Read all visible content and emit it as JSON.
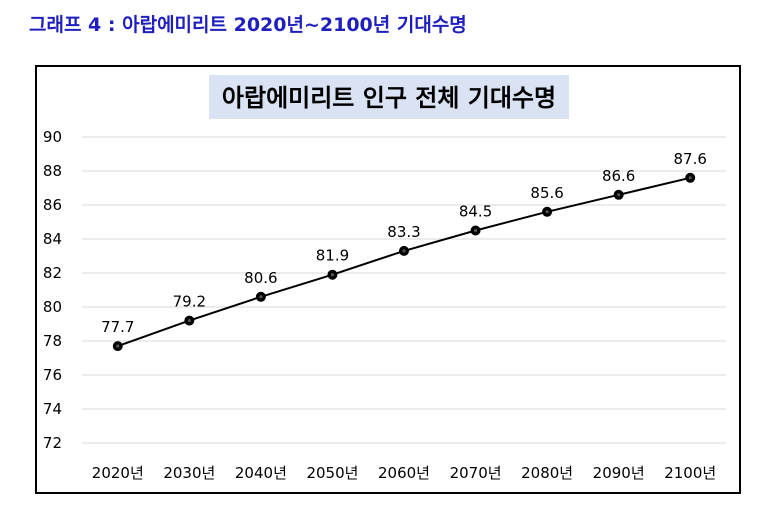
{
  "caption": "그래프 4 : 아랍에미리트 2020년~2100년 기대수명",
  "chart_data": {
    "type": "line",
    "title": "아랍에미리트 인구 전체 기대수명",
    "xlabel": "",
    "ylabel": "",
    "categories": [
      "2020년",
      "2030년",
      "2040년",
      "2050년",
      "2060년",
      "2070년",
      "2080년",
      "2090년",
      "2100년"
    ],
    "series": [
      {
        "values": [
          77.7,
          79.2,
          80.6,
          81.9,
          83.3,
          84.5,
          85.6,
          86.6,
          87.6
        ]
      }
    ],
    "ylim": [
      72,
      90
    ],
    "yticks": [
      72,
      74,
      76,
      78,
      80,
      82,
      84,
      86,
      88,
      90
    ],
    "grid": true,
    "data_labels": true,
    "line_color": "#000000",
    "title_background": "#dae3f3"
  }
}
